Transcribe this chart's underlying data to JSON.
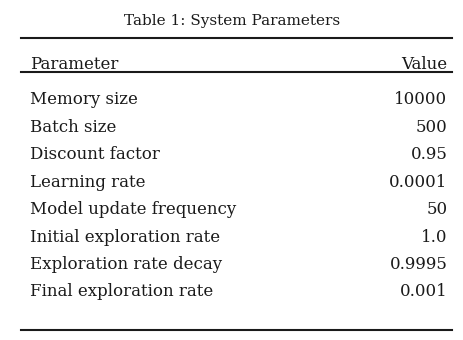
{
  "title": "Table 1: System Parameters",
  "col_headers": [
    "Parameter",
    "Value"
  ],
  "rows": [
    [
      "Memory size",
      "10000"
    ],
    [
      "Batch size",
      "500"
    ],
    [
      "Discount factor",
      "0.95"
    ],
    [
      "Learning rate",
      "0.0001"
    ],
    [
      "Model update frequency",
      "50"
    ],
    [
      "Initial exploration rate",
      "1.0"
    ],
    [
      "Exploration rate decay",
      "0.9995"
    ],
    [
      "Final exploration rate",
      "0.001"
    ]
  ],
  "bg_color": "#ffffff",
  "text_color": "#1a1a1a",
  "title_fontsize": 11,
  "header_fontsize": 12,
  "row_fontsize": 12
}
